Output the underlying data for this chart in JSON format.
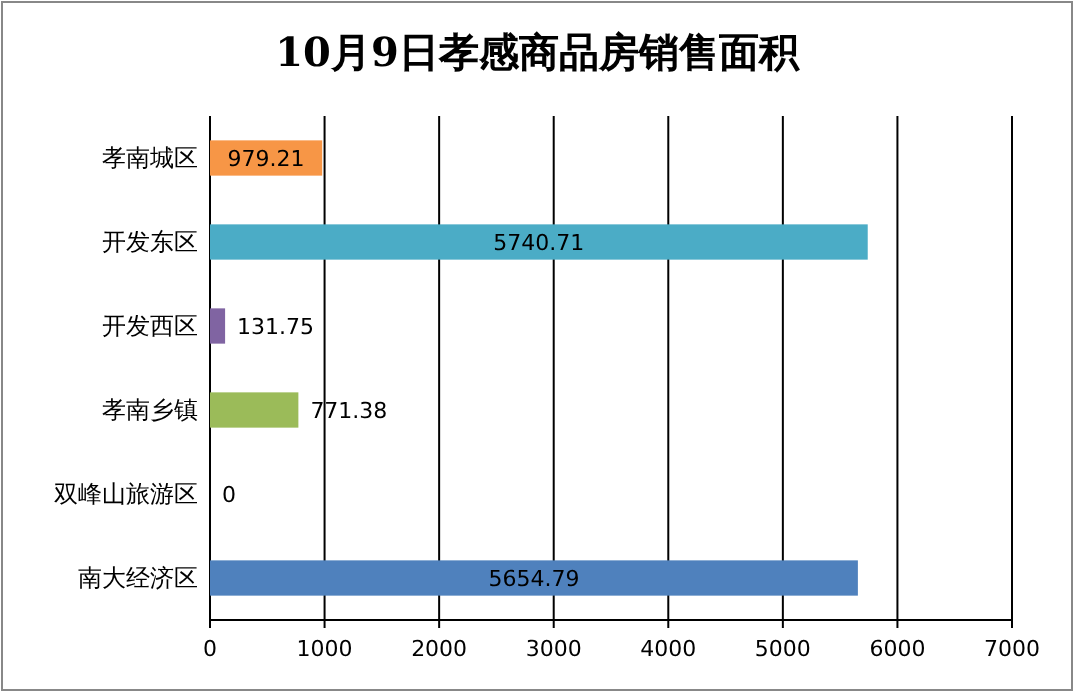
{
  "chart_data": {
    "type": "bar",
    "orientation": "horizontal",
    "title": "10月9日孝感商品房销售面积",
    "categories": [
      "孝南城区",
      "开发东区",
      "开发西区",
      "孝南乡镇",
      "双峰山旅游区",
      "南大经济区"
    ],
    "values": [
      979.21,
      5740.71,
      131.75,
      771.38,
      0,
      5654.79
    ],
    "colors": [
      "#f79646",
      "#4bacc6",
      "#8064a2",
      "#9bbb59",
      "#c0504d",
      "#4f81bd"
    ],
    "xlim": [
      0,
      7000
    ],
    "xticks": [
      0,
      1000,
      2000,
      3000,
      4000,
      5000,
      6000,
      7000
    ],
    "grid": "x",
    "data_labels": true
  }
}
